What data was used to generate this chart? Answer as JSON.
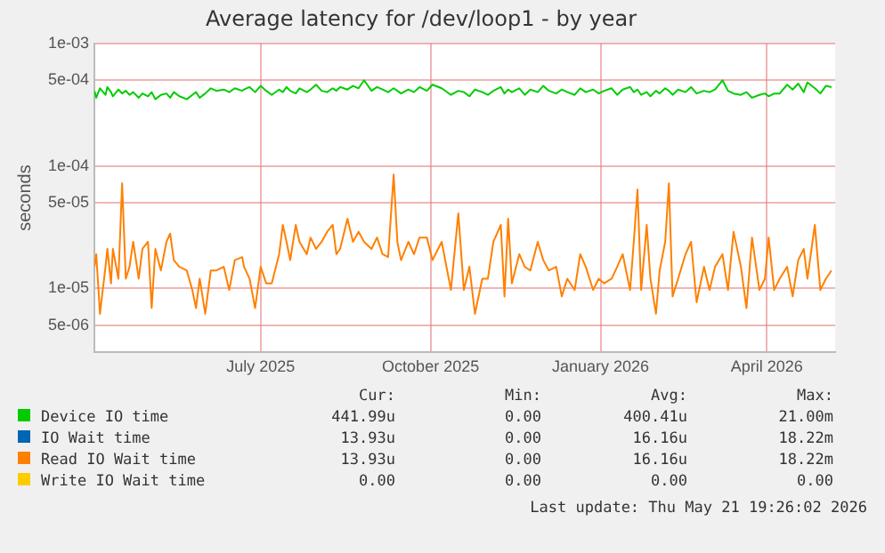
{
  "chart_data": {
    "type": "line",
    "title": "Average latency for /dev/loop1 - by year",
    "ylabel": "seconds",
    "log": "y",
    "grid": true,
    "legend": "bottom",
    "marker": "none",
    "line_style": "solid",
    "xlim": [
      "2025-04-17",
      "2026-05-23"
    ],
    "xticks": [
      {
        "value": "2025-07-16",
        "label": "July 2025"
      },
      {
        "value": "2025-10-16",
        "label": "October 2025"
      },
      {
        "value": "2026-01-16",
        "label": "January 2026"
      },
      {
        "value": "2026-04-16",
        "label": "April 2026"
      }
    ],
    "ylim": [
      3e-06,
      0.001
    ],
    "yticks": [
      {
        "value": 5e-06,
        "label": "5e-06"
      },
      {
        "value": 1e-05,
        "label": "1e-05"
      },
      {
        "value": 5e-05,
        "label": "5e-05"
      },
      {
        "value": 0.0001,
        "label": "1e-04"
      },
      {
        "value": 0.0005,
        "label": "5e-04"
      },
      {
        "value": 0.001,
        "label": "1e-03"
      }
    ],
    "x": [
      "2025-04-17",
      "2025-04-18",
      "2025-04-20",
      "2025-04-23",
      "2025-04-24",
      "2025-04-26",
      "2025-04-27",
      "2025-04-30",
      "2025-05-02",
      "2025-05-04",
      "2025-05-06",
      "2025-05-08",
      "2025-05-11",
      "2025-05-13",
      "2025-05-16",
      "2025-05-18",
      "2025-05-20",
      "2025-05-23",
      "2025-05-26",
      "2025-05-28",
      "2025-05-30",
      "2025-06-02",
      "2025-06-06",
      "2025-06-09",
      "2025-06-11",
      "2025-06-13",
      "2025-06-16",
      "2025-06-19",
      "2025-06-22",
      "2025-06-26",
      "2025-06-29",
      "2025-07-02",
      "2025-07-06",
      "2025-07-07",
      "2025-07-10",
      "2025-07-13",
      "2025-07-16",
      "2025-07-19",
      "2025-07-22",
      "2025-07-26",
      "2025-07-28",
      "2025-07-30",
      "2025-08-01",
      "2025-08-04",
      "2025-08-06",
      "2025-08-10",
      "2025-08-12",
      "2025-08-15",
      "2025-08-18",
      "2025-08-21",
      "2025-08-24",
      "2025-08-26",
      "2025-08-28",
      "2025-09-01",
      "2025-09-04",
      "2025-09-07",
      "2025-09-10",
      "2025-09-14",
      "2025-09-17",
      "2025-09-20",
      "2025-09-23",
      "2025-09-26",
      "2025-09-28",
      "2025-09-30",
      "2025-10-04",
      "2025-10-07",
      "2025-10-10",
      "2025-10-14",
      "2025-10-17",
      "2025-10-22",
      "2025-10-27",
      "2025-10-31",
      "2025-11-03",
      "2025-11-06",
      "2025-11-09",
      "2025-11-13",
      "2025-11-16",
      "2025-11-19",
      "2025-11-23",
      "2025-11-25",
      "2025-11-27",
      "2025-11-29",
      "2025-12-03",
      "2025-12-06",
      "2025-12-09",
      "2025-12-13",
      "2025-12-16",
      "2025-12-19",
      "2025-12-23",
      "2025-12-26",
      "2025-12-29",
      "2026-01-02",
      "2026-01-05",
      "2026-01-08",
      "2026-01-12",
      "2026-01-15",
      "2026-01-18",
      "2026-01-22",
      "2026-01-25",
      "2026-01-28",
      "2026-02-01",
      "2026-02-03",
      "2026-02-05",
      "2026-02-07",
      "2026-02-10",
      "2026-02-12",
      "2026-02-15",
      "2026-02-17",
      "2026-02-20",
      "2026-02-22",
      "2026-02-24",
      "2026-02-27",
      "2026-03-03",
      "2026-03-06",
      "2026-03-09",
      "2026-03-13",
      "2026-03-16",
      "2026-03-19",
      "2026-03-23",
      "2026-03-26",
      "2026-03-29",
      "2026-04-02",
      "2026-04-05",
      "2026-04-08",
      "2026-04-12",
      "2026-04-15",
      "2026-04-17",
      "2026-04-20",
      "2026-04-23",
      "2026-04-27",
      "2026-04-30",
      "2026-05-03",
      "2026-05-06",
      "2026-05-08",
      "2026-05-12",
      "2026-05-15",
      "2026-05-18",
      "2026-05-21"
    ],
    "series": [
      {
        "name": "Device IO time",
        "color": "#00cc00",
        "values": [
          0.00041,
          0.00036,
          0.00043,
          0.00038,
          0.00044,
          0.0004,
          0.00037,
          0.00042,
          0.00039,
          0.00041,
          0.00038,
          0.0004,
          0.00036,
          0.00039,
          0.00037,
          0.0004,
          0.00035,
          0.00038,
          0.00039,
          0.00036,
          0.0004,
          0.00037,
          0.00035,
          0.00038,
          0.0004,
          0.00036,
          0.00039,
          0.00043,
          0.00041,
          0.00042,
          0.0004,
          0.00043,
          0.00041,
          0.00042,
          0.00044,
          0.0004,
          0.00045,
          0.00041,
          0.00038,
          0.00042,
          0.0004,
          0.00044,
          0.00041,
          0.00039,
          0.00043,
          0.0004,
          0.00042,
          0.00046,
          0.00041,
          0.0004,
          0.00043,
          0.00041,
          0.00044,
          0.00042,
          0.00045,
          0.00043,
          0.0005,
          0.00041,
          0.00044,
          0.00042,
          0.0004,
          0.00043,
          0.00041,
          0.00039,
          0.00042,
          0.0004,
          0.00044,
          0.00041,
          0.00046,
          0.00043,
          0.00038,
          0.00041,
          0.0004,
          0.00037,
          0.00042,
          0.0004,
          0.00038,
          0.00041,
          0.00044,
          0.00039,
          0.00042,
          0.0004,
          0.00043,
          0.00038,
          0.00042,
          0.0004,
          0.00045,
          0.00041,
          0.00039,
          0.00042,
          0.0004,
          0.00038,
          0.00043,
          0.0004,
          0.00042,
          0.00039,
          0.00041,
          0.00043,
          0.00038,
          0.00042,
          0.00044,
          0.0004,
          0.00042,
          0.00038,
          0.0004,
          0.00037,
          0.00041,
          0.00039,
          0.00043,
          0.00041,
          0.00038,
          0.00042,
          0.0004,
          0.00044,
          0.00039,
          0.00041,
          0.0004,
          0.00042,
          0.0005,
          0.00041,
          0.00039,
          0.00038,
          0.0004,
          0.00036,
          0.00038,
          0.00039,
          0.00037,
          0.00039,
          0.00039,
          0.00046,
          0.00042,
          0.00047,
          0.0004,
          0.00048,
          0.00043,
          0.00039,
          0.00045,
          0.00044
        ]
      },
      {
        "name": "IO Wait time",
        "color": "#0066b3",
        "values": [
          null,
          null,
          null,
          null,
          null,
          null,
          null,
          null,
          null,
          null,
          null,
          null,
          null,
          null,
          null,
          null,
          null,
          null,
          null,
          null,
          null,
          null,
          null,
          null,
          null,
          null,
          null,
          null,
          null,
          null,
          null,
          null,
          null,
          null,
          null,
          null,
          null,
          null,
          null,
          null,
          null,
          null,
          null,
          null,
          null,
          null,
          null,
          null,
          null,
          null,
          null,
          null,
          null,
          null,
          null,
          null,
          null,
          null,
          null,
          null,
          null,
          null,
          null,
          null,
          null,
          null,
          null,
          null,
          null,
          null,
          null,
          null,
          null,
          null,
          null,
          null,
          null,
          null,
          null,
          null,
          null,
          null,
          null,
          null,
          null,
          null,
          null,
          null,
          null,
          null,
          null,
          null,
          null,
          null,
          null,
          null,
          null,
          null,
          null,
          null,
          null,
          null,
          null,
          null,
          null,
          null,
          null,
          null,
          null,
          null,
          null,
          null,
          null,
          null,
          null,
          null,
          null,
          null,
          null,
          null,
          null,
          null,
          null,
          null,
          null,
          null,
          null,
          null,
          null,
          null,
          null,
          null,
          null,
          null,
          null,
          null,
          null,
          null
        ]
      },
      {
        "name": "Read IO Wait time",
        "color": "#ff8000",
        "values": [
          1.5e-05,
          1.9e-05,
          6.2e-06,
          1.5e-05,
          2.1e-05,
          1.1e-05,
          2.1e-05,
          1.2e-05,
          7.2e-05,
          1.2e-05,
          1.5e-05,
          2.4e-05,
          1.2e-05,
          2.1e-05,
          2.4e-05,
          6.9e-06,
          2.1e-05,
          1.4e-05,
          2.4e-05,
          2.8e-05,
          1.7e-05,
          1.5e-05,
          1.4e-05,
          9.7e-06,
          6.9e-06,
          1.2e-05,
          6.2e-06,
          1.4e-05,
          1.4e-05,
          1.5e-05,
          9.7e-06,
          1.7e-05,
          1.8e-05,
          1.5e-05,
          1.2e-05,
          6.9e-06,
          1.5e-05,
          1.1e-05,
          1.1e-05,
          1.9e-05,
          3.3e-05,
          2.4e-05,
          1.7e-05,
          3.3e-05,
          2.4e-05,
          1.9e-05,
          2.6e-05,
          2.1e-05,
          2.4e-05,
          2.9e-05,
          3.3e-05,
          1.9e-05,
          2.1e-05,
          3.7e-05,
          2.4e-05,
          2.9e-05,
          2.4e-05,
          2.1e-05,
          2.6e-05,
          1.9e-05,
          1.8e-05,
          8.5e-05,
          2.4e-05,
          1.7e-05,
          2.4e-05,
          1.9e-05,
          2.6e-05,
          2.6e-05,
          1.7e-05,
          2.4e-05,
          9.7e-06,
          4.1e-05,
          9.7e-06,
          1.5e-05,
          6.2e-06,
          1.2e-05,
          1.2e-05,
          2.4e-05,
          3.3e-05,
          8.6e-06,
          3.7e-05,
          1.1e-05,
          1.9e-05,
          1.5e-05,
          1.4e-05,
          2.4e-05,
          1.7e-05,
          1.4e-05,
          1.5e-05,
          8.6e-06,
          1.2e-05,
          9.7e-06,
          1.9e-05,
          1.5e-05,
          9.7e-06,
          1.2e-05,
          1.1e-05,
          1.2e-05,
          1.5e-05,
          1.9e-05,
          9.7e-06,
          2.4e-05,
          6.4e-05,
          9.7e-06,
          3.3e-05,
          1.2e-05,
          6.2e-06,
          1.4e-05,
          2.4e-05,
          7.2e-05,
          8.6e-06,
          1.2e-05,
          1.9e-05,
          2.4e-05,
          7.7e-06,
          1.5e-05,
          9.7e-06,
          1.5e-05,
          1.9e-05,
          9.7e-06,
          2.9e-05,
          1.5e-05,
          6.9e-06,
          2.6e-05,
          9.7e-06,
          1.2e-05,
          2.6e-05,
          9.7e-06,
          1.2e-05,
          1.5e-05,
          8.6e-06,
          1.7e-05,
          2.1e-05,
          1.2e-05,
          3.3e-05,
          9.7e-06,
          1.2e-05,
          1.4e-05
        ]
      },
      {
        "name": "Write IO Wait time",
        "color": "#ffcc00",
        "values": [
          null,
          null,
          null,
          null,
          null,
          null,
          null,
          null,
          null,
          null,
          null,
          null,
          null,
          null,
          null,
          null,
          null,
          null,
          null,
          null,
          null,
          null,
          null,
          null,
          null,
          null,
          null,
          null,
          null,
          null,
          null,
          null,
          null,
          null,
          null,
          null,
          null,
          null,
          null,
          null,
          null,
          null,
          null,
          null,
          null,
          null,
          null,
          null,
          null,
          null,
          null,
          null,
          null,
          null,
          null,
          null,
          null,
          null,
          null,
          null,
          null,
          null,
          null,
          null,
          null,
          null,
          null,
          null,
          null,
          null,
          null,
          null,
          null,
          null,
          null,
          null,
          null,
          null,
          null,
          null,
          null,
          null,
          null,
          null,
          null,
          null,
          null,
          null,
          null,
          null,
          null,
          null,
          null,
          null,
          null,
          null,
          null,
          null,
          null,
          null,
          null,
          null,
          null,
          null,
          null,
          null,
          null,
          null,
          null,
          null,
          null,
          null,
          null,
          null,
          null,
          null,
          null,
          null,
          null,
          null,
          null,
          null,
          null,
          null,
          null,
          null,
          null,
          null,
          null,
          null,
          null,
          null,
          null,
          null,
          null,
          null,
          null,
          null
        ]
      }
    ],
    "annotations": [
      "Cur:",
      "Min:",
      "Avg:",
      "Max:",
      "441.99u",
      "0.00",
      "400.41u",
      "21.00m",
      "13.93u",
      "0.00",
      "16.16u",
      "18.22m",
      "13.93u",
      "0.00",
      "16.16u",
      "18.22m",
      "0.00",
      "0.00",
      "0.00",
      "0.00",
      "Last update: Thu May 21 19:26:02 2026"
    ]
  }
}
